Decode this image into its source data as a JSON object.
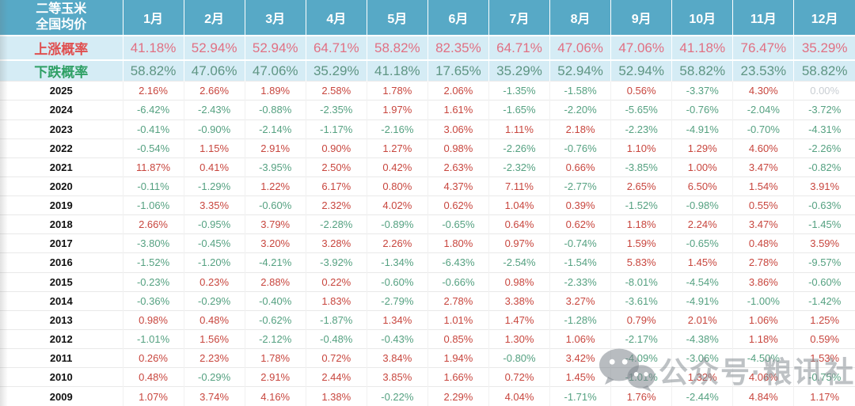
{
  "header": {
    "title_line1": "二等玉米",
    "title_line2": "全国均价"
  },
  "watermark": {
    "icon": "wechat-icon",
    "text": "公众号·粮讯社"
  },
  "colors": {
    "header_bg": "#57a9c6",
    "header_text": "#ffffff",
    "probability_row_bg": "#d5ecf5",
    "rise_label": "#e04f4f",
    "rise_value": "#e17083",
    "fall_label": "#2fa065",
    "fall_value": "#5e9583",
    "positive_value": "#c8463e",
    "negative_value": "#55a181",
    "zero_value": "#c9ced3",
    "year_text": "#111111",
    "watermark_gray": "#7d858c"
  },
  "chart_data": {
    "type": "table",
    "title": "二等玉米 全国均价",
    "columns": [
      "1月",
      "2月",
      "3月",
      "4月",
      "5月",
      "6月",
      "7月",
      "8月",
      "9月",
      "10月",
      "11月",
      "12月"
    ],
    "rise_probability": {
      "label": "上涨概率",
      "values": [
        "41.18%",
        "52.94%",
        "52.94%",
        "64.71%",
        "58.82%",
        "82.35%",
        "64.71%",
        "47.06%",
        "47.06%",
        "41.18%",
        "76.47%",
        "35.29%"
      ]
    },
    "fall_probability": {
      "label": "下跌概率",
      "values": [
        "58.82%",
        "47.06%",
        "47.06%",
        "35.29%",
        "41.18%",
        "17.65%",
        "35.29%",
        "52.94%",
        "52.94%",
        "58.82%",
        "23.53%",
        "58.82%"
      ]
    },
    "year_rows": [
      {
        "year": "2025",
        "values": [
          "2.16%",
          "2.66%",
          "1.89%",
          "2.58%",
          "1.78%",
          "2.06%",
          "-1.35%",
          "-1.58%",
          "0.56%",
          "-3.37%",
          "4.30%",
          "0.00%"
        ]
      },
      {
        "year": "2024",
        "values": [
          "-6.42%",
          "-2.43%",
          "-0.88%",
          "-2.35%",
          "1.97%",
          "1.61%",
          "-1.65%",
          "-2.20%",
          "-5.65%",
          "-0.76%",
          "-2.04%",
          "-3.72%"
        ]
      },
      {
        "year": "2023",
        "values": [
          "-0.41%",
          "-0.90%",
          "-2.14%",
          "-1.17%",
          "-2.16%",
          "3.06%",
          "1.11%",
          "2.18%",
          "-2.23%",
          "-4.91%",
          "-0.70%",
          "-4.31%"
        ]
      },
      {
        "year": "2022",
        "values": [
          "-0.54%",
          "1.15%",
          "2.91%",
          "0.90%",
          "1.27%",
          "0.98%",
          "-2.26%",
          "-0.76%",
          "1.10%",
          "1.29%",
          "4.60%",
          "-2.26%"
        ]
      },
      {
        "year": "2021",
        "values": [
          "11.87%",
          "0.41%",
          "-3.95%",
          "2.50%",
          "0.42%",
          "2.63%",
          "-2.32%",
          "0.66%",
          "-3.85%",
          "1.00%",
          "3.47%",
          "-0.82%"
        ]
      },
      {
        "year": "2020",
        "values": [
          "-0.11%",
          "-1.29%",
          "1.22%",
          "6.17%",
          "0.80%",
          "4.37%",
          "7.11%",
          "-2.77%",
          "2.65%",
          "6.50%",
          "1.54%",
          "3.91%"
        ]
      },
      {
        "year": "2019",
        "values": [
          "-1.06%",
          "3.35%",
          "-0.60%",
          "2.32%",
          "4.02%",
          "0.62%",
          "1.04%",
          "0.39%",
          "-1.52%",
          "-0.98%",
          "0.55%",
          "-0.63%"
        ]
      },
      {
        "year": "2018",
        "values": [
          "2.66%",
          "-0.95%",
          "3.79%",
          "-2.28%",
          "-0.89%",
          "-0.65%",
          "0.64%",
          "0.62%",
          "1.18%",
          "2.24%",
          "3.47%",
          "-1.45%"
        ]
      },
      {
        "year": "2017",
        "values": [
          "-3.80%",
          "-0.45%",
          "3.20%",
          "3.28%",
          "2.26%",
          "1.80%",
          "0.97%",
          "-0.74%",
          "1.59%",
          "-0.65%",
          "0.48%",
          "3.59%"
        ]
      },
      {
        "year": "2016",
        "values": [
          "-1.52%",
          "-1.20%",
          "-4.21%",
          "-3.92%",
          "-1.34%",
          "-6.43%",
          "-2.54%",
          "-1.54%",
          "5.83%",
          "1.45%",
          "2.78%",
          "-9.57%"
        ]
      },
      {
        "year": "2015",
        "values": [
          "-0.23%",
          "0.23%",
          "2.88%",
          "0.22%",
          "-0.60%",
          "-0.66%",
          "0.98%",
          "-2.33%",
          "-8.01%",
          "-4.54%",
          "3.86%",
          "-0.60%"
        ]
      },
      {
        "year": "2014",
        "values": [
          "-0.36%",
          "-0.29%",
          "-0.40%",
          "1.83%",
          "-2.79%",
          "2.78%",
          "3.38%",
          "3.27%",
          "-3.61%",
          "-4.91%",
          "-1.00%",
          "-1.42%"
        ]
      },
      {
        "year": "2013",
        "values": [
          "0.98%",
          "0.48%",
          "-0.62%",
          "-1.87%",
          "1.34%",
          "1.01%",
          "1.47%",
          "-1.28%",
          "0.79%",
          "2.01%",
          "1.06%",
          "1.25%"
        ]
      },
      {
        "year": "2012",
        "values": [
          "-1.01%",
          "1.56%",
          "-2.12%",
          "-0.48%",
          "-0.43%",
          "0.85%",
          "1.30%",
          "1.06%",
          "-2.17%",
          "-4.38%",
          "1.18%",
          "0.59%"
        ]
      },
      {
        "year": "2011",
        "values": [
          "0.26%",
          "2.23%",
          "1.78%",
          "0.72%",
          "3.84%",
          "1.94%",
          "-0.80%",
          "3.42%",
          "-4.09%",
          "-3.06%",
          "-4.50%",
          "1.53%"
        ]
      },
      {
        "year": "2010",
        "values": [
          "0.48%",
          "-0.29%",
          "2.91%",
          "2.44%",
          "3.85%",
          "1.66%",
          "0.72%",
          "1.45%",
          "-1.01%",
          "1.32%",
          "4.06%",
          "-0.75%"
        ]
      },
      {
        "year": "2009",
        "values": [
          "1.07%",
          "3.74%",
          "4.16%",
          "1.38%",
          "-0.22%",
          "2.29%",
          "4.04%",
          "-1.71%",
          "1.76%",
          "-2.44%",
          "4.84%",
          "1.17%"
        ]
      }
    ]
  }
}
